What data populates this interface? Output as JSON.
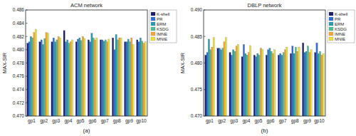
{
  "chart_data": [
    {
      "type": "bar",
      "title": "ACM network",
      "y_label": "MAX-SIR",
      "caption": "(a)",
      "categories": [
        "gp1",
        "gp2",
        "gp3",
        "gp4",
        "gp5",
        "gp6",
        "gp7",
        "gp8",
        "gp9",
        "gp10"
      ],
      "ylim": [
        0.47,
        0.486
      ],
      "yticks": [
        {
          "value": 0.47,
          "label": "0.470"
        },
        {
          "value": 0.472,
          "label": "0.472"
        },
        {
          "value": 0.474,
          "label": "0.474"
        },
        {
          "value": 0.476,
          "label": "0.476"
        },
        {
          "value": 0.478,
          "label": "0.478"
        },
        {
          "value": 0.48,
          "label": "0.480"
        },
        {
          "value": 0.482,
          "label": "0.482"
        },
        {
          "value": 0.484,
          "label": "0.484"
        },
        {
          "value": 0.486,
          "label": "0.486"
        }
      ],
      "grid": false,
      "legend": "right",
      "series": [
        {
          "name": "K-shell",
          "color": "#1c1f6b",
          "values": [
            0.481,
            0.4812,
            0.4812,
            0.4829,
            0.4812,
            0.4815,
            0.4815,
            0.4818,
            0.4812,
            0.4815
          ]
        },
        {
          "name": "PR",
          "color": "#2f6fd6",
          "values": [
            0.4812,
            0.4815,
            0.4818,
            0.4812,
            0.4816,
            0.4812,
            0.4815,
            0.48,
            0.4812,
            0.4812
          ]
        },
        {
          "name": "ERM",
          "color": "#2b9cb0",
          "values": [
            0.482,
            0.4808,
            0.4812,
            0.4815,
            0.4818,
            0.4825,
            0.4813,
            0.4823,
            0.4816,
            0.4818
          ]
        },
        {
          "name": "KSDG",
          "color": "#4fbf9a",
          "values": [
            0.4818,
            0.4817,
            0.4815,
            0.481,
            0.4814,
            0.4818,
            0.4815,
            0.4815,
            0.4812,
            0.4813
          ]
        },
        {
          "name": "IMNE",
          "color": "#f5a83a",
          "values": [
            0.4826,
            0.4826,
            0.482,
            0.4812,
            0.482,
            0.4815,
            0.4812,
            0.4818,
            0.4818,
            0.481
          ]
        },
        {
          "name": "MNIE",
          "color": "#ece23a",
          "values": [
            0.4831,
            0.4825,
            0.4818,
            0.4815,
            0.4817,
            0.4818,
            0.4816,
            0.4818,
            0.4808,
            0.4812
          ]
        }
      ]
    },
    {
      "type": "bar",
      "title": "DBLP network",
      "y_label": "MAX-SIR",
      "caption": "(b)",
      "categories": [
        "gp1",
        "gp2",
        "gp3",
        "gp4",
        "gp5",
        "gp6",
        "gp7",
        "gp8",
        "gp9",
        "gp10"
      ],
      "ylim": [
        0.47,
        0.49
      ],
      "yticks": [
        {
          "value": 0.47,
          "label": "0.470"
        },
        {
          "value": 0.475,
          "label": "0.475"
        },
        {
          "value": 0.48,
          "label": "0.480"
        },
        {
          "value": 0.485,
          "label": "0.485"
        },
        {
          "value": 0.49,
          "label": "0.490"
        }
      ],
      "grid": false,
      "legend": "right",
      "series": [
        {
          "name": "K-shell",
          "color": "#1c1f6b",
          "values": [
            0.4815,
            0.4828,
            0.482,
            0.4812,
            0.4815,
            0.4815,
            0.4815,
            0.4818,
            0.4838,
            0.482
          ]
        },
        {
          "name": "PR",
          "color": "#2f6fd6",
          "values": [
            0.482,
            0.4828,
            0.4815,
            0.4835,
            0.4812,
            0.4825,
            0.4818,
            0.4832,
            0.482,
            0.4838
          ]
        },
        {
          "name": "ERM",
          "color": "#2b9cb0",
          "values": [
            0.4845,
            0.4825,
            0.4825,
            0.4818,
            0.4818,
            0.4828,
            0.4815,
            0.4818,
            0.4822,
            0.4818
          ]
        },
        {
          "name": "KSDG",
          "color": "#4fbf9a",
          "values": [
            0.4825,
            0.4828,
            0.4822,
            0.4815,
            0.4815,
            0.4822,
            0.482,
            0.483,
            0.4832,
            0.4822
          ]
        },
        {
          "name": "IMNE",
          "color": "#f5a83a",
          "values": [
            0.483,
            0.484,
            0.4832,
            0.482,
            0.4828,
            0.4818,
            0.4825,
            0.4822,
            0.482,
            0.4815
          ]
        },
        {
          "name": "MNIE",
          "color": "#ece23a",
          "values": [
            0.4848,
            0.4848,
            0.4835,
            0.4833,
            0.4826,
            0.4825,
            0.483,
            0.483,
            0.4825,
            0.4818
          ]
        }
      ]
    }
  ]
}
